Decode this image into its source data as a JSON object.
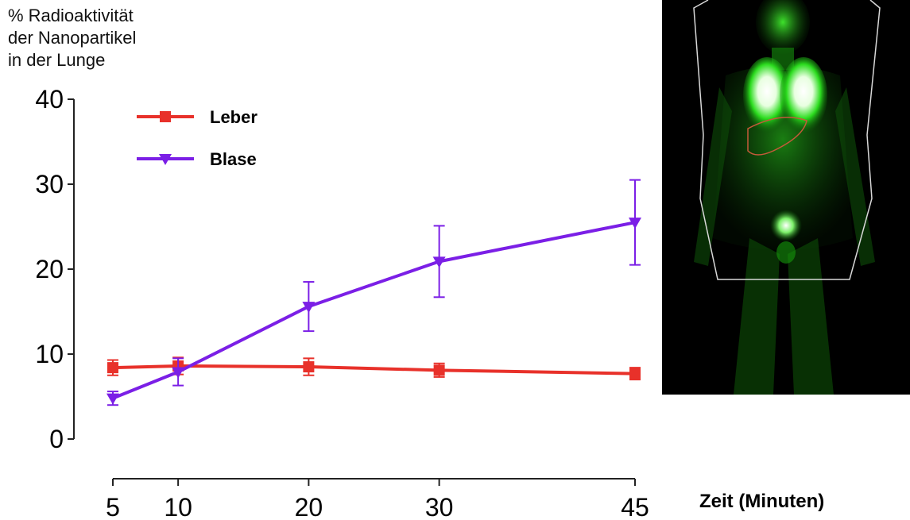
{
  "ylabel_lines": [
    "% Radioaktivität",
    "der Nanopartikel",
    "in der Lunge"
  ],
  "xlabel": "Zeit (Minuten)",
  "colors": {
    "leber": "#e8312a",
    "blase": "#7b1fe6",
    "axis": "#222222"
  },
  "chart_data": {
    "type": "line",
    "title": "",
    "xlabel": "Zeit (Minuten)",
    "ylabel": "% Radioaktivität der Nanopartikel in der Lunge",
    "x": [
      5,
      10,
      20,
      30,
      45
    ],
    "x_ticks": [
      5,
      10,
      20,
      30,
      45
    ],
    "y_ticks": [
      0,
      10,
      20,
      30,
      40
    ],
    "ylim": [
      0,
      40
    ],
    "xlim": [
      5,
      45
    ],
    "legend_position": "top-left",
    "series": [
      {
        "name": "Leber",
        "marker": "square",
        "color": "#e8312a",
        "values": [
          8.4,
          8.6,
          8.5,
          8.1,
          7.7
        ],
        "errors": [
          0.9,
          1.0,
          1.0,
          0.8,
          0.7
        ]
      },
      {
        "name": "Blase",
        "marker": "triangle-down",
        "color": "#7b1fe6",
        "values": [
          4.8,
          7.9,
          15.6,
          20.9,
          25.5
        ],
        "errors": [
          0.8,
          1.6,
          2.9,
          4.2,
          5.0
        ]
      }
    ]
  },
  "scan_image": {
    "type": "PET whole-body scan",
    "glow_color": "#2bdc1e",
    "outline_color": "#d8d8d8"
  }
}
